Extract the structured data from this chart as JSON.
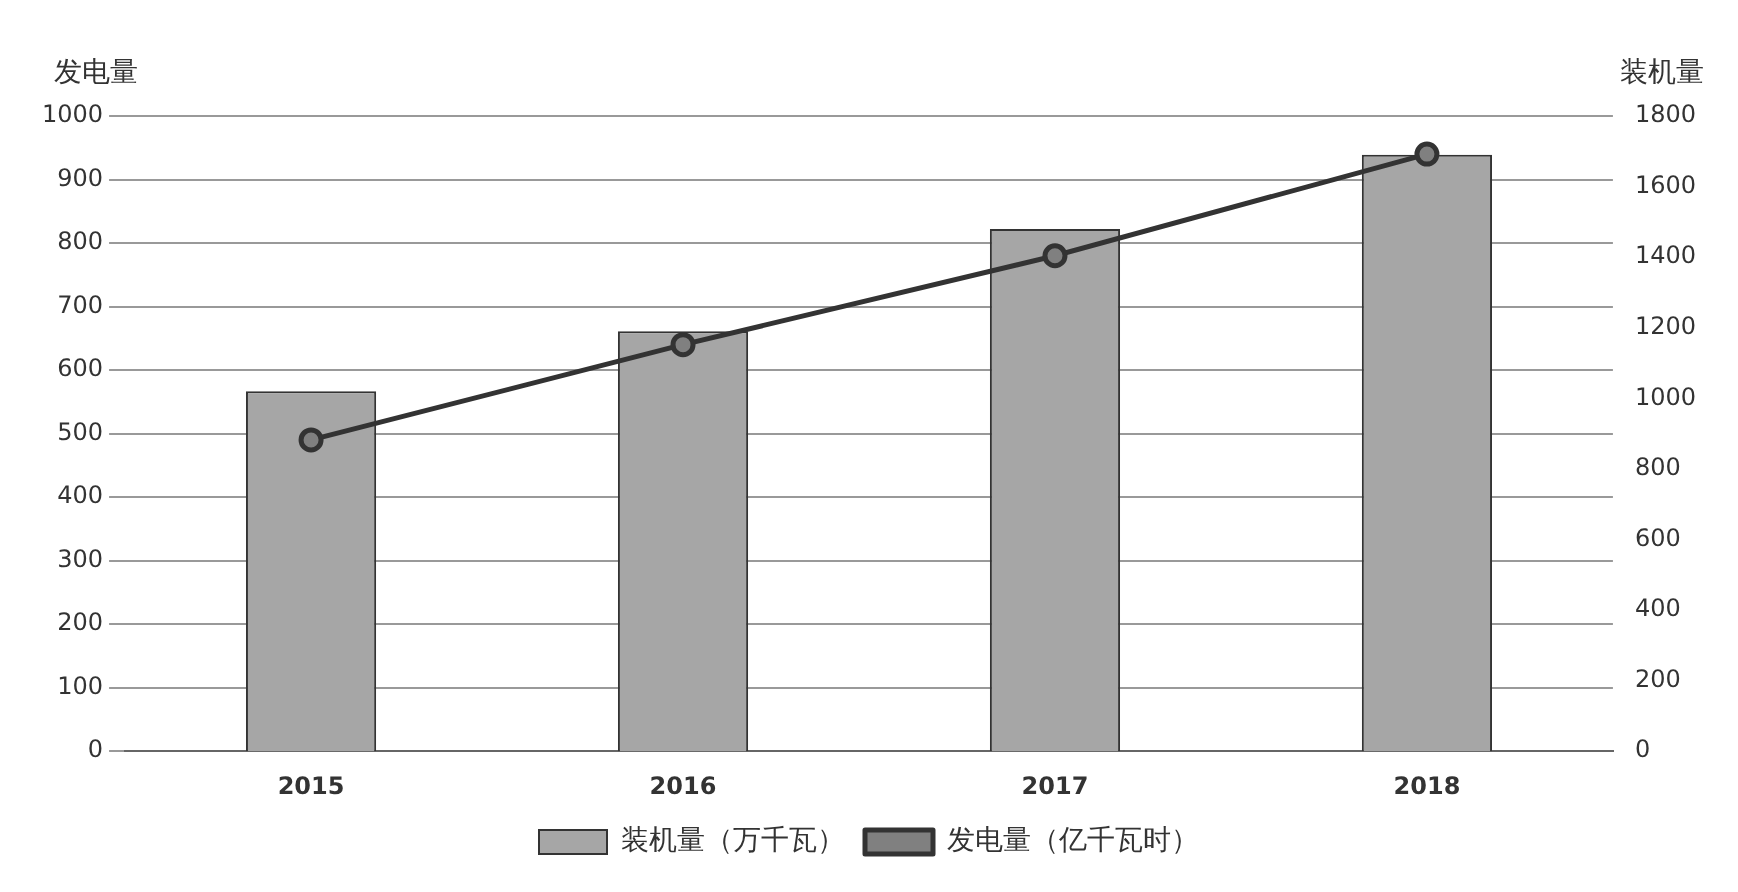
{
  "chart_data": {
    "type": "bar",
    "categories": [
      "2015",
      "2016",
      "2017",
      "2018"
    ],
    "ylabel": "发电量",
    "y2label": "装机量",
    "series": [
      {
        "name": "装机量（万千瓦）",
        "axis": "y2",
        "color": "#a6a6a6",
        "values": [
          1020,
          1190,
          1480,
          1690
        ]
      },
      {
        "name": "发电量（亿千瓦时）",
        "type": "line",
        "axis": "y",
        "color": "#333333",
        "values": [
          490,
          640,
          780,
          940
        ]
      }
    ],
    "ylim": [
      0,
      1000
    ],
    "yticks": [
      0,
      100,
      200,
      300,
      400,
      500,
      600,
      700,
      800,
      900,
      1000
    ],
    "y2lim": [
      0,
      1800
    ],
    "y2ticks": [
      0,
      200,
      400,
      600,
      800,
      1000,
      1200,
      1400,
      1600,
      1800
    ],
    "grid": "y",
    "legend": "bottom",
    "marker": "circle"
  }
}
